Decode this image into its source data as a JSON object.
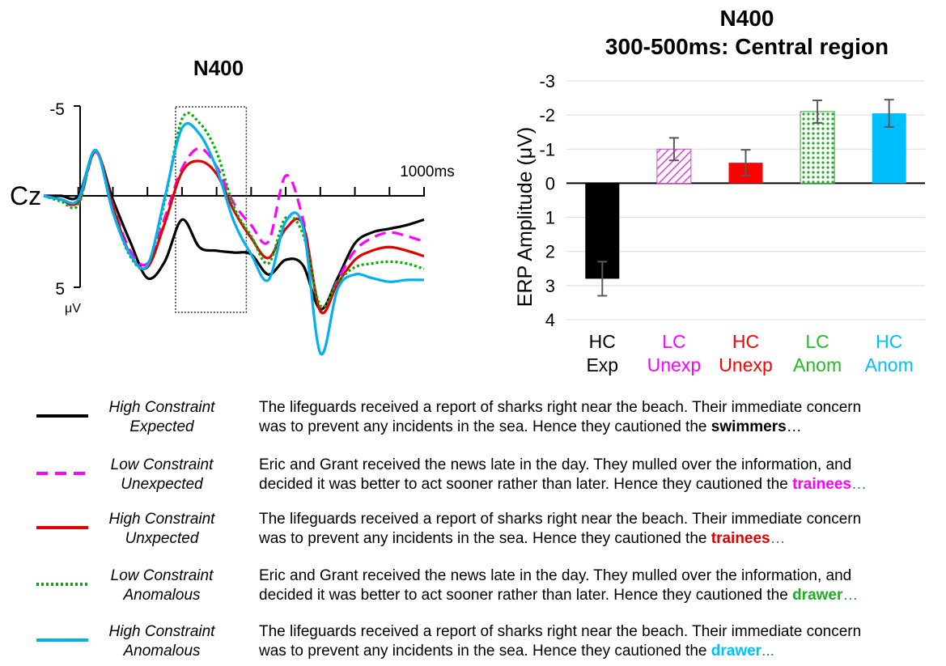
{
  "chart_data": [
    {
      "type": "line",
      "title": "N400",
      "electrode": "Cz",
      "y_tick_labels": [
        "-5",
        "5"
      ],
      "y_unit": "μV",
      "x_marker_label": "1000ms",
      "xlim": [
        -100,
        1000
      ],
      "ylim": [
        -5,
        5
      ],
      "window_ms": [
        300,
        500
      ],
      "series": [
        {
          "name": "High Constraint Expected",
          "color": "#000000",
          "dash": "solid",
          "x": [
            -100,
            -50,
            0,
            50,
            100,
            150,
            200,
            250,
            300,
            350,
            400,
            450,
            500,
            550,
            600,
            650,
            700,
            750,
            800,
            850,
            900,
            950,
            1000
          ],
          "y": [
            0,
            0,
            0,
            -2.4,
            0.2,
            2.5,
            4.5,
            3.6,
            1.3,
            2.8,
            3.0,
            3.1,
            3.2,
            4.3,
            3.5,
            3.8,
            6.2,
            4.5,
            2.6,
            2.0,
            1.8,
            1.6,
            1.3
          ]
        },
        {
          "name": "Low Constraint Unexpected",
          "color": "#ff00ff",
          "dash": "dash",
          "x": [
            -100,
            -50,
            0,
            50,
            100,
            150,
            200,
            250,
            300,
            350,
            400,
            450,
            500,
            550,
            600,
            650,
            700,
            750,
            800,
            850,
            900,
            950,
            1000
          ],
          "y": [
            0,
            0.2,
            0.4,
            -2.4,
            0.5,
            3.0,
            3.7,
            1.2,
            -1.5,
            -2.6,
            -1.6,
            0.4,
            1.6,
            2.5,
            -1.1,
            1.3,
            6.3,
            4.6,
            3.0,
            2.3,
            2.0,
            2.2,
            2.5
          ]
        },
        {
          "name": "High Constraint Unxpected",
          "color": "#e00000",
          "dash": "solid",
          "x": [
            -100,
            -50,
            0,
            50,
            100,
            150,
            200,
            250,
            300,
            350,
            400,
            450,
            500,
            550,
            600,
            650,
            700,
            750,
            800,
            850,
            900,
            950,
            1000
          ],
          "y": [
            0,
            0.2,
            0.3,
            -2.5,
            0.6,
            3.2,
            3.9,
            1.5,
            -1.3,
            -1.9,
            -1.2,
            0.8,
            2.3,
            3.4,
            1.8,
            1.6,
            6.3,
            4.8,
            3.5,
            3.0,
            2.8,
            3.0,
            3.3
          ]
        },
        {
          "name": "Low Constraint Anomalous",
          "color": "#00b000",
          "dash": "dot",
          "x": [
            -100,
            -50,
            0,
            50,
            100,
            150,
            200,
            250,
            300,
            350,
            400,
            450,
            500,
            550,
            600,
            650,
            700,
            750,
            800,
            850,
            900,
            950,
            1000
          ],
          "y": [
            0,
            0.3,
            0.5,
            -2.5,
            0.8,
            3.3,
            3.8,
            0.3,
            -4.2,
            -4.0,
            -2.4,
            0.6,
            2.2,
            3.7,
            1.2,
            2.1,
            6.0,
            4.7,
            3.9,
            3.7,
            3.6,
            3.7,
            4.0
          ]
        },
        {
          "name": "High Constraint Anomalous",
          "color": "#00b0f0",
          "dash": "solid",
          "x": [
            -100,
            -50,
            0,
            50,
            100,
            150,
            200,
            250,
            300,
            350,
            400,
            450,
            500,
            550,
            600,
            650,
            700,
            750,
            800,
            850,
            900,
            950,
            1000
          ],
          "y": [
            0,
            0.2,
            0.2,
            -2.5,
            0.9,
            3.2,
            3.8,
            0.1,
            -3.7,
            -3.4,
            -1.5,
            1.4,
            3.2,
            4.6,
            1.4,
            1.7,
            8.6,
            5.1,
            4.3,
            4.5,
            4.7,
            4.6,
            4.6
          ]
        }
      ]
    },
    {
      "type": "bar",
      "title": "N400",
      "subtitle": "300-500ms: Central region",
      "ylabel": "ERP Amplitude (μV)",
      "ylim": [
        -3,
        4
      ],
      "y_axis_inverted": true,
      "y_ticks": [
        "-3",
        "-2",
        "-1",
        "0",
        "1",
        "2",
        "3",
        "4"
      ],
      "grid": true,
      "categories": [
        {
          "line1": "HC",
          "line2": "Exp",
          "color": "#000000",
          "fill": "solid"
        },
        {
          "line1": "LC",
          "line2": "Unexp",
          "color": "#e040e0",
          "fill": "diagonal-hatch"
        },
        {
          "line1": "HC",
          "line2": "Unexp",
          "color": "#ff0000",
          "fill": "solid"
        },
        {
          "line1": "LC",
          "line2": "Anom",
          "color": "#22aa22",
          "fill": "dotted"
        },
        {
          "line1": "HC",
          "line2": "Anom",
          "color": "#00bfff",
          "fill": "solid"
        }
      ],
      "values": [
        2.8,
        -1.0,
        -0.6,
        -2.1,
        -2.05
      ],
      "error": [
        0.5,
        0.33,
        0.38,
        0.33,
        0.4
      ]
    }
  ],
  "legend": [
    {
      "name_line1": "High Constraint",
      "name_line2": "Expected",
      "color": "#000000",
      "dash": "solid",
      "sentence_line1": "The lifeguards received a report of sharks right near the beach. Their immediate concern",
      "sentence_line2": "was to prevent any incidents  in the sea. Hence they cautioned the ",
      "target": "swimmers",
      "target_color": "#000000",
      "ellipsis": "…"
    },
    {
      "name_line1": "Low Constraint",
      "name_line2": "Unexpected",
      "color": "#ff00ff",
      "dash": "dash",
      "sentence_line1": "Eric and Grant received the news late in the day. They mulled over the information, and",
      "sentence_line2": "decided it was better to act sooner rather than later. Hence they cautioned the ",
      "target": "trainees",
      "target_color": "#ff00ff",
      "ellipsis": "…"
    },
    {
      "name_line1": "High Constraint",
      "name_line2": "Unxpected",
      "color": "#e00000",
      "dash": "solid",
      "sentence_line1": "The lifeguards received a report of sharks right near the beach. Their immediate concern",
      "sentence_line2": "was to prevent any incidents  in the sea. Hence they cautioned the ",
      "target": "trainees",
      "target_color": "#e00000",
      "ellipsis": "…"
    },
    {
      "name_line1": "Low Constraint",
      "name_line2": "Anomalous",
      "color": "#00b000",
      "dash": "dot",
      "sentence_line1": "Eric and Grant received the news late in the day. They mulled over the information, and",
      "sentence_line2": "decided it was better to act sooner rather than later. Hence they cautioned the ",
      "target": "drawer",
      "target_color": "#22aa22",
      "ellipsis": "…"
    },
    {
      "name_line1": "High Constraint",
      "name_line2": "Anomalous",
      "color": "#00b0f0",
      "dash": "solid",
      "sentence_line1": "The lifeguards received a report of sharks right near the beach. Their immediate concern",
      "sentence_line2": "was to prevent any incidents  in the sea. Hence they cautioned the ",
      "target": "drawer",
      "target_color": "#00bfff",
      "ellipsis": "..."
    }
  ]
}
